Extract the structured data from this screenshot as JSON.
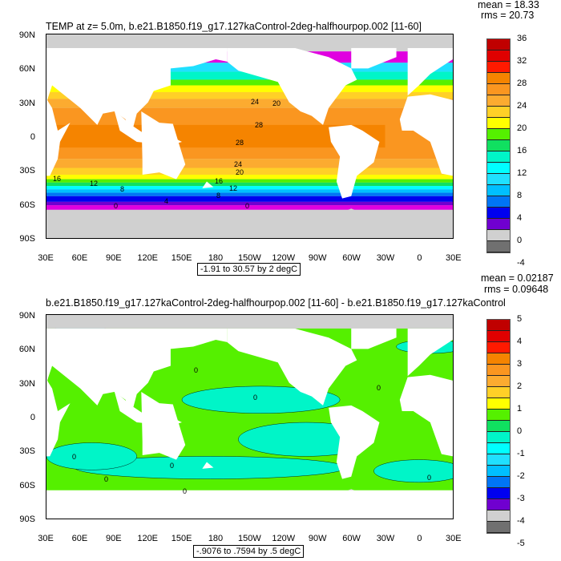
{
  "top": {
    "title": "TEMP at z=   5.0m, b.e21.B1850.f19_g17.127kaControl-2deg-halfhourpop.002 [11-60]",
    "mean": "mean = 18.33",
    "rms": "rms = 20.73",
    "range": "-1.91 to 30.57 by 2 degC",
    "colorbar_labels": [
      "36",
      "32",
      "28",
      "24",
      "20",
      "16",
      "12",
      "8",
      "4",
      "0",
      "-4"
    ],
    "colorbar_colors": [
      "#c00000",
      "#e00000",
      "#ff1a00",
      "#f58400",
      "#fa9620",
      "#fcab30",
      "#ffd027",
      "#ffff00",
      "#55f000",
      "#10e060",
      "#00f5c8",
      "#00ffff",
      "#20e0ff",
      "#00bfff",
      "#0075f5",
      "#0000f0",
      "#7000d0",
      "#e000e0",
      "#d0d0d0",
      "#707070"
    ],
    "contour_labels": [
      "24",
      "20",
      "28",
      "28",
      "24",
      "20",
      "16",
      "12",
      "8",
      "16",
      "12",
      "8",
      "4",
      "0",
      "0"
    ]
  },
  "bottom": {
    "title": "b.e21.B1850.f19_g17.127kaControl-2deg-halfhourpop.002 [11-60] - b.e21.B1850.f19_g17.127kaControl",
    "mean": "mean = 0.02187",
    "rms": "rms = 0.09648",
    "range": "-.9076 to .7594 by .5 degC",
    "colorbar_labels": [
      "5",
      "4",
      "3",
      "2",
      "1",
      "0",
      "-1",
      "-2",
      "-3",
      "-4",
      "-5"
    ],
    "colorbar_colors": [
      "#c00000",
      "#e00000",
      "#ff1a00",
      "#f58400",
      "#fa9620",
      "#fcab30",
      "#ffd027",
      "#ffff00",
      "#55f000",
      "#10e060",
      "#00f5c8",
      "#00ffff",
      "#20e0ff",
      "#00bfff",
      "#0075f5",
      "#0000f0",
      "#7000d0",
      "#e000e0",
      "#d0d0d0",
      "#707070"
    ],
    "contour_labels": [
      "0",
      "0",
      "0",
      "0",
      "0",
      "0",
      "0",
      "0"
    ]
  },
  "axes": {
    "lat_labels": [
      "90N",
      "60N",
      "30N",
      "0",
      "30S",
      "60S",
      "90S"
    ],
    "lon_labels": [
      "30E",
      "60E",
      "90E",
      "120E",
      "150E",
      "180",
      "150W",
      "120W",
      "90W",
      "60W",
      "30W",
      "0",
      "30E"
    ]
  }
}
